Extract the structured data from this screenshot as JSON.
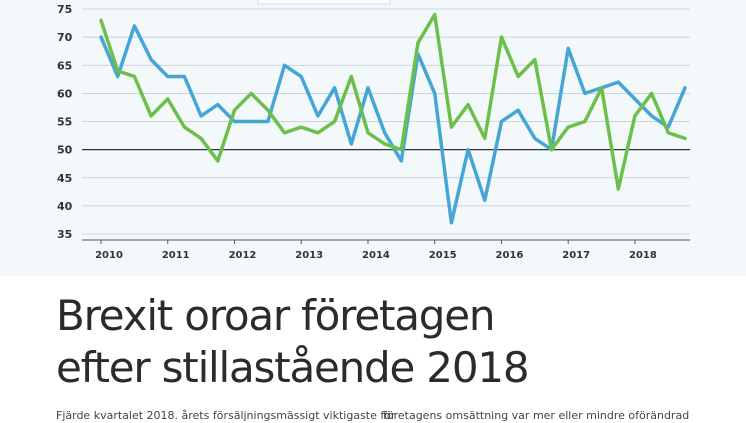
{
  "chart_data": {
    "type": "line",
    "title": "",
    "xlabel": "",
    "ylabel": "",
    "ylim": [
      35,
      75
    ],
    "yticks": [
      35,
      40,
      45,
      50,
      55,
      60,
      65,
      70,
      75
    ],
    "xtick_labels": [
      "2010",
      "2011",
      "2012",
      "2013",
      "2014",
      "2015",
      "2016",
      "2017",
      "2018"
    ],
    "grid": "horizontal",
    "x": [
      2010.0,
      2010.25,
      2010.5,
      2010.75,
      2011.0,
      2011.25,
      2011.5,
      2011.75,
      2012.0,
      2012.25,
      2012.5,
      2012.75,
      2013.0,
      2013.25,
      2013.5,
      2013.75,
      2014.0,
      2014.25,
      2014.5,
      2014.75,
      2015.0,
      2015.25,
      2015.5,
      2015.75,
      2016.0,
      2016.25,
      2016.5,
      2016.75,
      2017.0,
      2017.25,
      2017.5,
      2017.75,
      2018.0,
      2018.25,
      2018.5,
      2018.75
    ],
    "series": [
      {
        "color": "#45a6d6",
        "values": [
          70,
          63,
          72,
          66,
          63,
          63,
          56,
          58,
          55,
          55,
          55,
          65,
          63,
          56,
          61,
          51,
          61,
          53,
          48,
          67,
          60,
          37,
          50,
          41,
          55,
          57,
          52,
          50,
          68,
          60,
          61,
          62,
          59,
          56,
          54,
          61
        ]
      },
      {
        "color": "#6cc04a",
        "values": [
          73,
          64,
          63,
          56,
          59,
          54,
          52,
          48,
          57,
          60,
          57,
          53,
          54,
          53,
          55,
          63,
          53,
          51,
          50,
          69,
          74,
          54,
          58,
          52,
          70,
          63,
          66,
          50,
          54,
          55,
          61,
          43,
          56,
          60,
          53,
          52
        ]
      }
    ]
  },
  "article": {
    "headline_line1": "Brexit oroar företagen",
    "headline_line2": "efter stillastående 2018",
    "body_left": "Fjärde kvartalet 2018. årets försäljningsmässigt viktigaste för",
    "body_right": "företagens omsättning var mer eller mindre oförändrad"
  }
}
